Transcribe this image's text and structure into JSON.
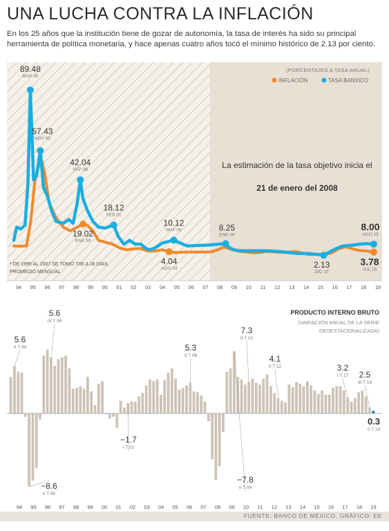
{
  "header": {
    "title": "UNA LUCHA CONTRA LA INFLACIÓN",
    "subtitle": "En los 25 años que la institución tiene de gozar de autonomía, la tasa de interés ha sido su principal herramienta de política monetaria, y hace apenas cuatro años tocó el mínimo histórico de 2.13 por ciento."
  },
  "colors": {
    "inflation": "#f08a2c",
    "rate": "#19aee0",
    "bar": "#cdc3b6",
    "panel": "#e8e0d4"
  },
  "chart_data": [
    {
      "type": "line",
      "units_note": "(PORCENTAJES A TASA ANUAL)",
      "x_tick_labels": [
        "94",
        "95",
        "96",
        "97",
        "98",
        "99",
        "00",
        "01",
        "02",
        "03",
        "04",
        "05",
        "06",
        "07",
        "08",
        "09",
        "10",
        "11",
        "12",
        "13",
        "14",
        "15",
        "16",
        "17",
        "18",
        "19"
      ],
      "xlim": [
        1994,
        2019.6
      ],
      "ylim": [
        0,
        95
      ],
      "grid": false,
      "legend": "top-right",
      "series": [
        {
          "name": "INFLACIÓN",
          "x": [
            1994.0,
            1994.5,
            1994.9,
            1995.2,
            1995.5,
            1995.8,
            1996.0,
            1996.2,
            1996.5,
            1996.8,
            1997.0,
            1997.5,
            1998.0,
            1998.5,
            1998.9,
            1999.2,
            1999.6,
            2000.0,
            2000.5,
            2001.0,
            2001.5,
            2002.0,
            2002.5,
            2003.0,
            2003.4,
            2004.0,
            2004.5,
            2005.0,
            2005.5,
            2006.0,
            2007.0,
            2008.0,
            2008.5,
            2008.9,
            2009.5,
            2010.0,
            2011.0,
            2012.0,
            2013.0,
            2014.0,
            2014.9,
            2015.5,
            2016.0,
            2016.5,
            2017.0,
            2017.5,
            2018.0,
            2018.5,
            2019.0,
            2019.5
          ],
          "y": [
            7.0,
            6.9,
            7.1,
            20.0,
            42.0,
            50.0,
            51.7,
            45.0,
            30.0,
            25.0,
            22.0,
            17.0,
            15.0,
            17.0,
            18.6,
            18.0,
            15.0,
            10.0,
            9.0,
            8.0,
            6.0,
            5.0,
            5.5,
            5.7,
            4.5,
            4.3,
            5.0,
            4.0,
            3.5,
            3.8,
            3.8,
            3.9,
            5.2,
            6.5,
            5.0,
            4.2,
            3.4,
            4.1,
            3.6,
            4.1,
            2.5,
            2.6,
            2.6,
            3.3,
            5.5,
            6.6,
            5.5,
            4.6,
            4.4,
            3.78
          ]
        },
        {
          "name": "TASA BANXICO",
          "x": [
            1994.0,
            1994.2,
            1994.5,
            1994.8,
            1995.0,
            1995.17,
            1995.4,
            1995.6,
            1995.88,
            1996.1,
            1996.4,
            1996.7,
            1997.0,
            1997.5,
            1997.9,
            1998.2,
            1998.5,
            1998.71,
            1998.9,
            1999.2,
            1999.6,
            2000.0,
            2000.5,
            2001.08,
            2001.4,
            2001.8,
            2002.2,
            2002.6,
            2003.0,
            2003.3,
            2003.6,
            2004.0,
            2004.5,
            2005.0,
            2005.33,
            2005.8,
            2006.3,
            2007.0,
            2007.8,
            2008.5,
            2009.0,
            2009.3,
            2009.6,
            2010.0,
            2011.0,
            2012.0,
            2013.0,
            2014.0,
            2015.0,
            2015.96,
            2016.3,
            2016.8,
            2017.3,
            2018.0,
            2018.5,
            2019.0,
            2019.5
          ],
          "y": [
            10.0,
            17.0,
            16.0,
            18.0,
            40.0,
            89.48,
            42.0,
            44.0,
            57.43,
            38.0,
            33.0,
            25.0,
            20.0,
            19.0,
            21.0,
            19.0,
            30.0,
            42.04,
            32.0,
            26.0,
            20.0,
            17.0,
            16.5,
            18.12,
            12.0,
            8.0,
            10.0,
            8.0,
            8.0,
            6.0,
            5.0,
            6.0,
            8.5,
            9.5,
            10.12,
            8.5,
            7.0,
            7.3,
            7.5,
            8.0,
            8.25,
            6.0,
            5.0,
            4.5,
            4.5,
            4.5,
            4.0,
            3.1,
            3.0,
            2.13,
            3.5,
            5.5,
            7.0,
            7.5,
            8.0,
            8.25,
            8.0
          ]
        }
      ],
      "point_labels": [
        {
          "value": "89.48",
          "sub": "MAR 95",
          "series": "TASA BANXICO"
        },
        {
          "value": "57.43",
          "sub": "NOV 95",
          "series": "TASA BANXICO"
        },
        {
          "value": "42.04",
          "sub": "SEP 98",
          "series": "TASA BANXICO"
        },
        {
          "value": "19.02",
          "sub": "ENE 99",
          "series": "INFLACIÓN"
        },
        {
          "value": "18.12",
          "sub": "FEB 01",
          "series": "TASA BANXICO"
        },
        {
          "value": "4.04",
          "sub": "AGO 03",
          "series": "INFLACIÓN"
        },
        {
          "value": "10.12",
          "sub": "MAY 05",
          "series": "TASA BANXICO"
        },
        {
          "value": "8.25",
          "sub": "ENE 09",
          "series": "TASA BANXICO"
        },
        {
          "value": "2.13",
          "sub": "DIC 15",
          "series": "TASA BANXICO"
        },
        {
          "value": "8.00",
          "sub": "AGO 19",
          "series": "TASA BANXICO"
        },
        {
          "value": "3.78",
          "sub": "JUL 19",
          "series": "INFLACIÓN"
        }
      ],
      "annotation_text": "La estimación de la tasa objetivo inicia el",
      "annotation_bold": "21 de enero del 2008",
      "footnote_line1": "* DE 1995 AL 2007 SE TOMÓ TIIE A 28 DÍAS,",
      "footnote_line2": "PROMEDIO MENSUAL"
    },
    {
      "type": "bar",
      "title": "PRODUCTO INTERNO BRUTO",
      "subtitle_line1": "(VARIACIÓN ANUAL DE LA SERIE",
      "subtitle_line2": "DESESTACIONALIZADA)",
      "x_tick_labels": [
        "94",
        "95",
        "96",
        "97",
        "98",
        "99",
        "00",
        "01",
        "02",
        "03",
        "04",
        "05",
        "06",
        "07",
        "08",
        "09",
        "10",
        "11",
        "12",
        "13",
        "14",
        "15",
        "16",
        "17",
        "18",
        "19"
      ],
      "ylim": [
        -9.5,
        7.5
      ],
      "values": [
        4.3,
        5.6,
        4.9,
        4.8,
        -0.4,
        -8.6,
        -7.9,
        -6.4,
        -0.7,
        6.8,
        7.5,
        6.6,
        5.6,
        6.4,
        6.6,
        6.8,
        5.3,
        2.9,
        3.0,
        3.2,
        2.9,
        4.3,
        2.6,
        1.0,
        3.5,
        3.8,
        -0.1,
        -0.6,
        -0.4,
        -1.7,
        1.5,
        0.7,
        1.2,
        1.4,
        1.4,
        2.0,
        2.4,
        3.3,
        4.0,
        3.8,
        4.0,
        2.2,
        3.9,
        4.8,
        5.3,
        4.1,
        2.8,
        3.0,
        3.3,
        3.6,
        2.6,
        2.5,
        2.1,
        1.4,
        -0.9,
        -5.4,
        -7.8,
        -6.2,
        -2.2,
        4.9,
        5.3,
        7.3,
        4.3,
        4.0,
        3.4,
        3.7,
        4.1,
        3.6,
        3.4,
        4.1,
        4.6,
        3.2,
        2.4,
        1.8,
        1.5,
        1.3,
        3.4,
        3.1,
        3.7,
        3.5,
        3.2,
        3.8,
        3.3,
        2.7,
        2.3,
        2.7,
        2.2,
        2.2,
        3.0,
        3.2,
        3.2,
        2.7,
        1.9,
        1.4,
        1.8,
        2.5,
        2.7,
        2.0,
        0.7,
        0.3
      ],
      "point_labels": [
        {
          "value": "5.6",
          "sub": "II T 94"
        },
        {
          "value": "5.6",
          "sub": "IV T 96"
        },
        {
          "value": "−8.6",
          "sub": "II T 95"
        },
        {
          "value": "−1.7",
          "sub": "I T 02"
        },
        {
          "value": "5.3",
          "sub": "II T 06"
        },
        {
          "value": "−7.8",
          "sub": "II T 09"
        },
        {
          "value": "7.3",
          "sub": "II T 10"
        },
        {
          "value": "4.1",
          "sub": "II T 12"
        },
        {
          "value": "3.2",
          "sub": "I T 17"
        },
        {
          "value": "2.5",
          "sub": "III T 18"
        },
        {
          "value": "0.3",
          "sub": "II T 19"
        }
      ]
    }
  ],
  "footer": {
    "source": "FUENTE: BANCO DE MÉXICO.  GRÁFICO: EE"
  }
}
